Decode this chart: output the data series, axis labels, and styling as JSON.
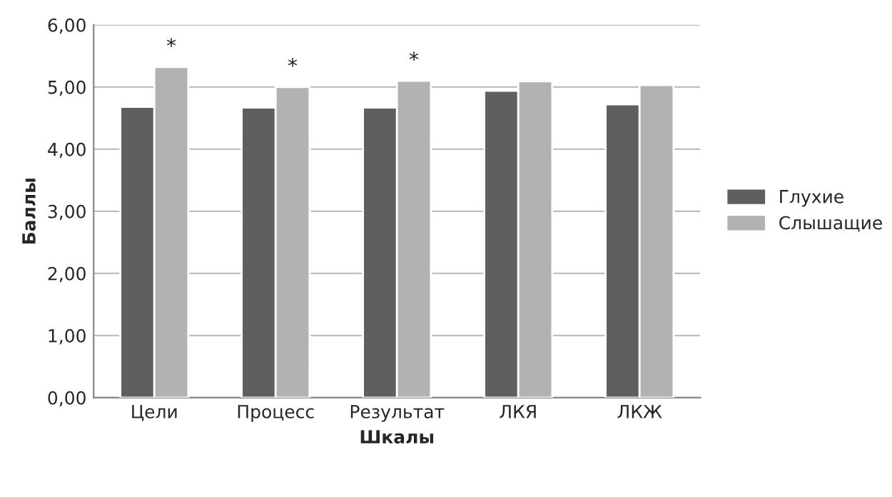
{
  "chart_data": {
    "type": "bar",
    "xlabel": "Шкалы",
    "ylabel": "Баллы",
    "categories": [
      "Цели",
      "Процесс",
      "Результат",
      "ЛКЯ",
      "ЛКЖ"
    ],
    "series": [
      {
        "name": "Глухие",
        "color": "#5f5f5f",
        "values": [
          4.68,
          4.67,
          4.67,
          4.94,
          4.72
        ]
      },
      {
        "name": "Слышащие",
        "color": "#b2b2b2",
        "values": [
          5.32,
          5.0,
          5.1,
          5.09,
          5.03
        ]
      }
    ],
    "ylim": [
      0,
      6
    ],
    "yticks": [
      {
        "value": 0,
        "label": "0,00"
      },
      {
        "value": 1,
        "label": "1,00"
      },
      {
        "value": 2,
        "label": "2,00"
      },
      {
        "value": 3,
        "label": "3,00"
      },
      {
        "value": 4,
        "label": "4,00"
      },
      {
        "value": 5,
        "label": "5,00"
      },
      {
        "value": 6,
        "label": "6,00"
      }
    ],
    "annotations": [
      "*",
      "*",
      "*"
    ],
    "grid": "y",
    "legend": "right"
  }
}
